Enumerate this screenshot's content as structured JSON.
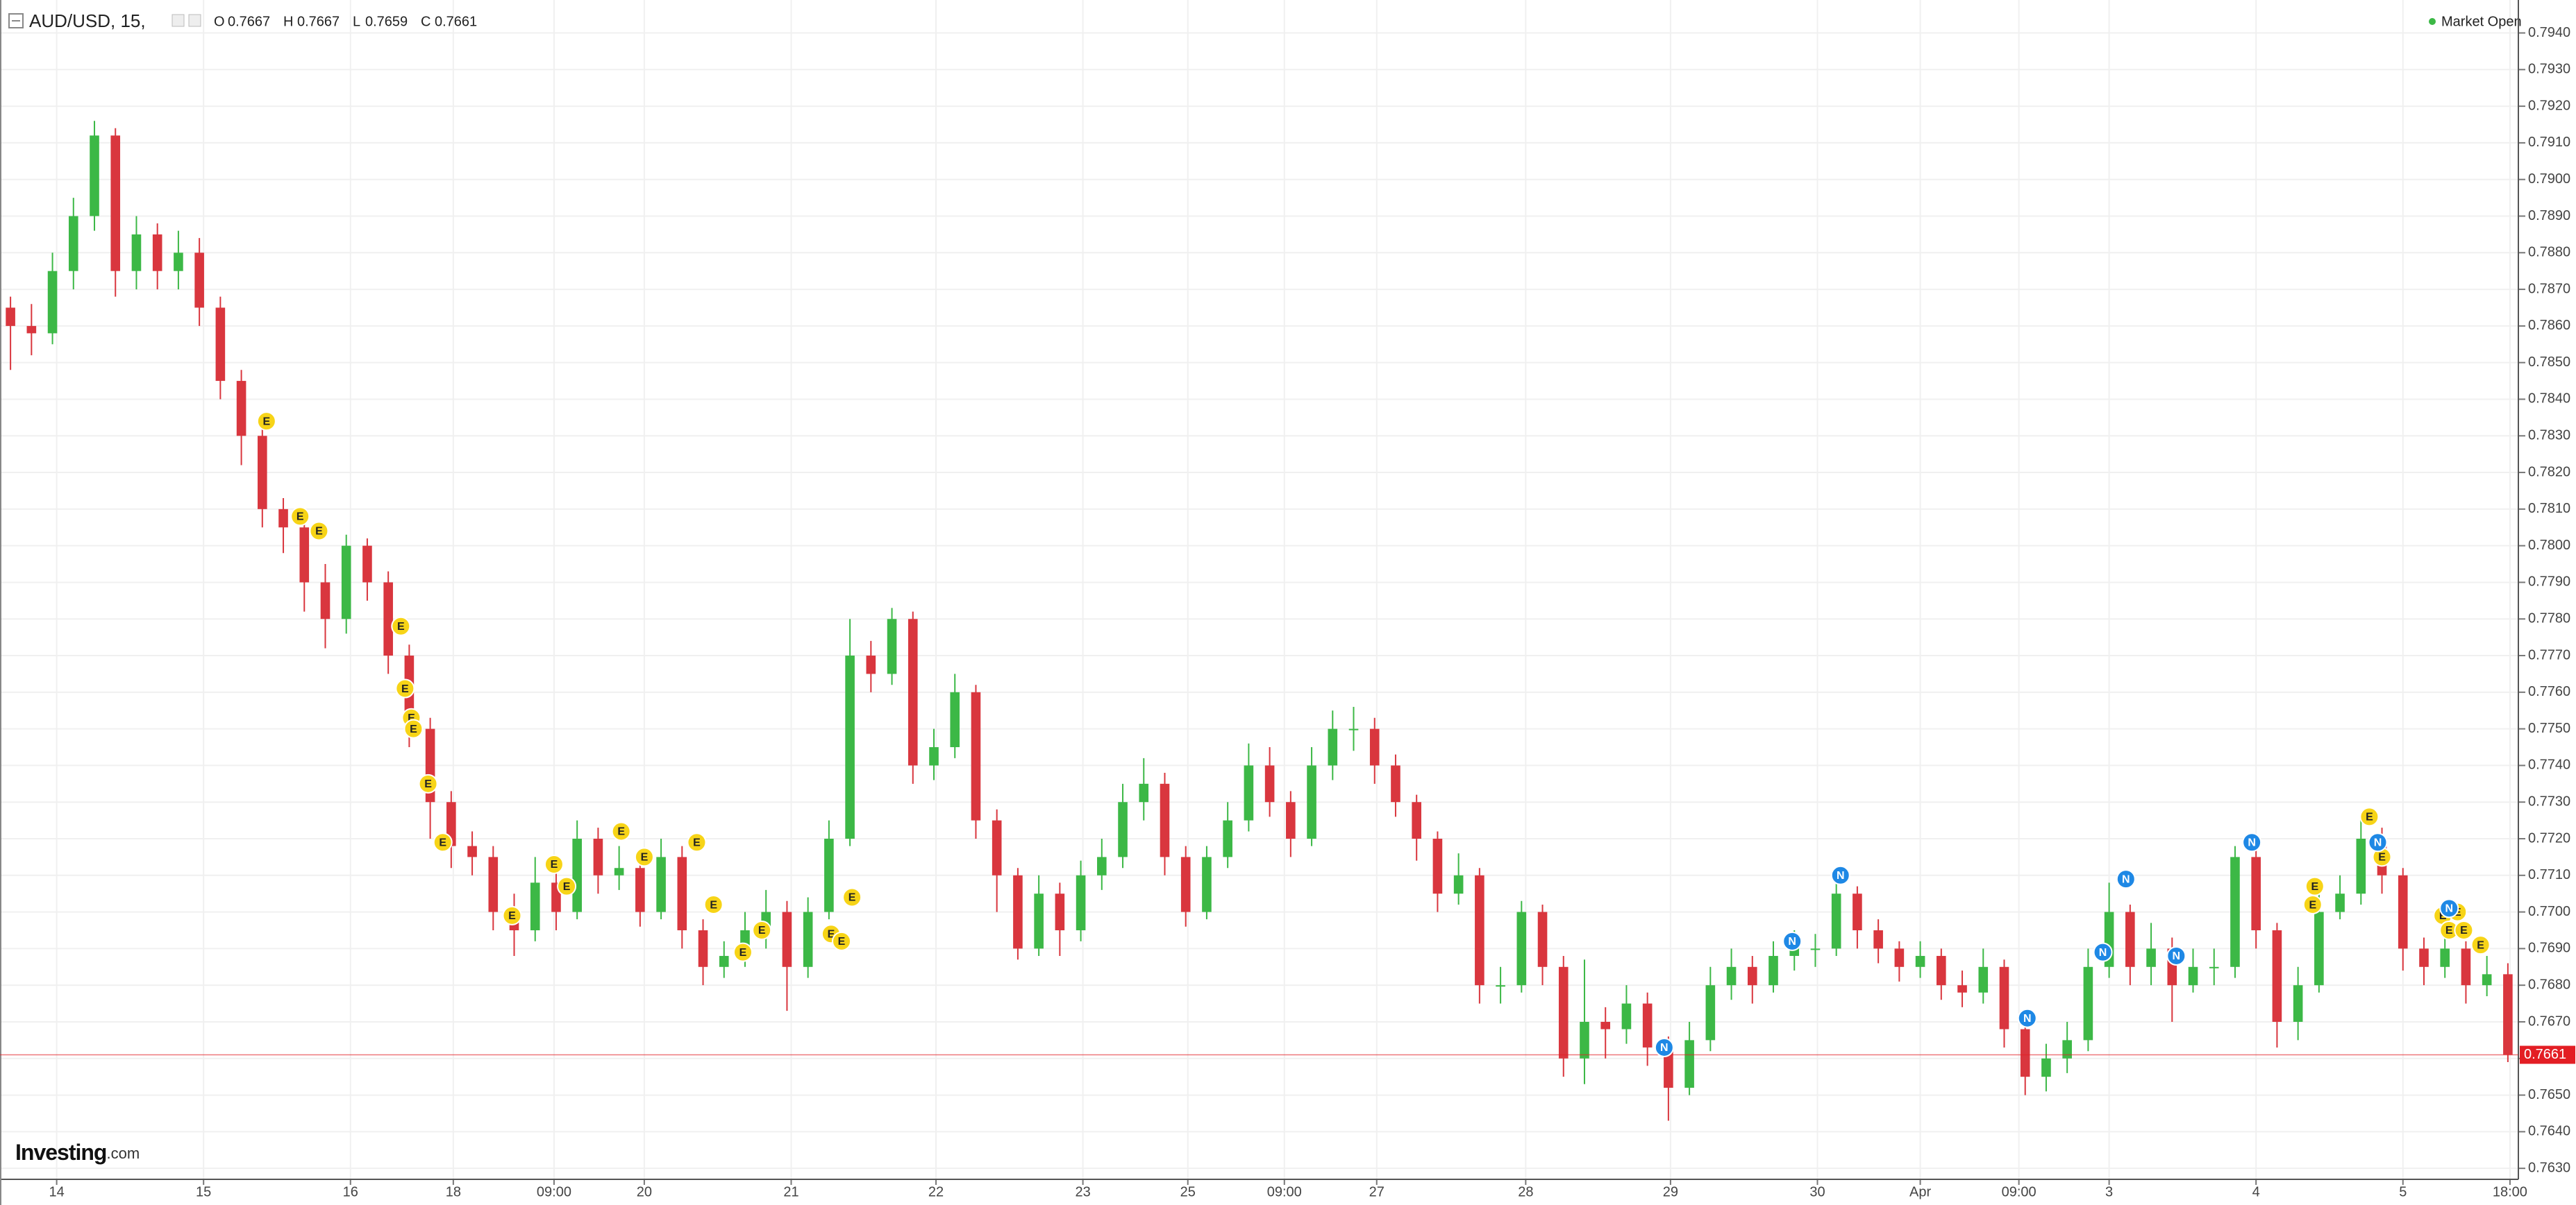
{
  "chart_data": {
    "type": "candlestick",
    "title": "AUD/USD, 15,",
    "ohlc_header": {
      "open_label": "O",
      "open": 0.7667,
      "high_label": "H",
      "high": 0.7667,
      "low_label": "L",
      "low": 0.7659,
      "close_label": "C",
      "close": 0.7661
    },
    "status": "Market Open",
    "brand": {
      "name": "Investing",
      "suffix": ".com"
    },
    "up_color": "#3cb846",
    "down_color": "#d9363e",
    "last_price_color": "#e31e24",
    "grid": true,
    "open": [
      0.7865,
      0.786,
      0.7858,
      0.7875,
      0.789,
      0.7912,
      0.7875,
      0.7885,
      0.7875,
      0.788,
      0.7865,
      0.7845,
      0.783,
      0.781,
      0.7805,
      0.779,
      0.778,
      0.78,
      0.779,
      0.777,
      0.775,
      0.773,
      0.7718,
      0.7715,
      0.77,
      0.7695,
      0.7708,
      0.77,
      0.772,
      0.771,
      0.7712,
      0.77,
      0.7715,
      0.7695,
      0.7685,
      0.7688,
      0.7695,
      0.77,
      0.7685,
      0.77,
      0.772,
      0.777,
      0.7765,
      0.778,
      0.774,
      0.7745,
      0.776,
      0.7725,
      0.771,
      0.769,
      0.7705,
      0.7695,
      0.771,
      0.7715,
      0.773,
      0.7735,
      0.7715,
      0.77,
      0.7715,
      0.7725,
      0.774,
      0.773,
      0.772,
      0.774,
      0.775,
      0.775,
      0.774,
      0.773,
      0.772,
      0.7705,
      0.771,
      0.768,
      0.768,
      0.77,
      0.7685,
      0.766,
      0.767,
      0.7668,
      0.7675,
      0.7663,
      0.7652,
      0.7665,
      0.768,
      0.7685,
      0.768,
      0.7688,
      0.769,
      0.769,
      0.7705,
      0.7695,
      0.769,
      0.7685,
      0.7688,
      0.768,
      0.7678,
      0.7685,
      0.7668,
      0.7655,
      0.766,
      0.7665,
      0.7685,
      0.77,
      0.7685,
      0.769,
      0.768,
      0.7685,
      0.7685,
      0.7715,
      0.7695,
      0.767,
      0.768,
      0.77,
      0.7705,
      0.772,
      0.771,
      0.769,
      0.7685,
      0.769,
      0.768,
      0.7683
    ],
    "high": [
      0.7868,
      0.7866,
      0.788,
      0.7895,
      0.7916,
      0.7914,
      0.789,
      0.7888,
      0.7886,
      0.7884,
      0.7868,
      0.7848,
      0.7833,
      0.7813,
      0.7808,
      0.7795,
      0.7803,
      0.7802,
      0.7793,
      0.7773,
      0.7753,
      0.7733,
      0.7722,
      0.7718,
      0.7705,
      0.7715,
      0.7712,
      0.7725,
      0.7723,
      0.7718,
      0.7715,
      0.772,
      0.7718,
      0.7698,
      0.7692,
      0.77,
      0.7706,
      0.7703,
      0.7704,
      0.7725,
      0.778,
      0.7774,
      0.7783,
      0.7782,
      0.775,
      0.7765,
      0.7762,
      0.7728,
      0.7712,
      0.771,
      0.7708,
      0.7714,
      0.772,
      0.7735,
      0.7742,
      0.7738,
      0.7718,
      0.7718,
      0.773,
      0.7746,
      0.7745,
      0.7733,
      0.7745,
      0.7755,
      0.7756,
      0.7753,
      0.7743,
      0.7732,
      0.7722,
      0.7716,
      0.7712,
      0.7685,
      0.7703,
      0.7702,
      0.7688,
      0.7687,
      0.7674,
      0.768,
      0.7678,
      0.7666,
      0.767,
      0.7685,
      0.769,
      0.7688,
      0.7692,
      0.7695,
      0.7694,
      0.771,
      0.7707,
      0.7698,
      0.7692,
      0.7692,
      0.769,
      0.7684,
      0.769,
      0.7687,
      0.767,
      0.7664,
      0.767,
      0.769,
      0.7708,
      0.7702,
      0.7697,
      0.7693,
      0.769,
      0.769,
      0.7718,
      0.7717,
      0.7697,
      0.7685,
      0.7705,
      0.771,
      0.7726,
      0.7723,
      0.7712,
      0.7693,
      0.7695,
      0.7692,
      0.7688,
      0.7686
    ],
    "low": [
      0.7848,
      0.7852,
      0.7855,
      0.787,
      0.7886,
      0.7868,
      0.787,
      0.787,
      0.787,
      0.786,
      0.784,
      0.7822,
      0.7805,
      0.7798,
      0.7782,
      0.7772,
      0.7776,
      0.7785,
      0.7765,
      0.7745,
      0.772,
      0.7712,
      0.771,
      0.7695,
      0.7688,
      0.7692,
      0.7695,
      0.7698,
      0.7705,
      0.7706,
      0.7696,
      0.7698,
      0.769,
      0.768,
      0.7682,
      0.7685,
      0.769,
      0.7673,
      0.7682,
      0.7698,
      0.7718,
      0.776,
      0.7762,
      0.7735,
      0.7736,
      0.7742,
      0.772,
      0.77,
      0.7687,
      0.7688,
      0.7688,
      0.7692,
      0.7706,
      0.7712,
      0.7725,
      0.771,
      0.7696,
      0.7698,
      0.7712,
      0.7722,
      0.7726,
      0.7715,
      0.7718,
      0.7736,
      0.7744,
      0.7735,
      0.7726,
      0.7714,
      0.77,
      0.7702,
      0.7675,
      0.7675,
      0.7678,
      0.768,
      0.7655,
      0.7653,
      0.766,
      0.7664,
      0.7658,
      0.7643,
      0.765,
      0.7662,
      0.7676,
      0.7675,
      0.7678,
      0.7684,
      0.7685,
      0.7688,
      0.769,
      0.7686,
      0.7681,
      0.7682,
      0.7676,
      0.7674,
      0.7675,
      0.7663,
      0.765,
      0.7651,
      0.7656,
      0.7662,
      0.7682,
      0.768,
      0.768,
      0.767,
      0.7678,
      0.768,
      0.7682,
      0.769,
      0.7663,
      0.7665,
      0.7678,
      0.7698,
      0.7702,
      0.7705,
      0.7684,
      0.768,
      0.7682,
      0.7675,
      0.7677,
      0.7659
    ],
    "close": [
      0.786,
      0.7858,
      0.7875,
      0.789,
      0.7912,
      0.7875,
      0.7885,
      0.7875,
      0.788,
      0.7865,
      0.7845,
      0.783,
      0.781,
      0.7805,
      0.779,
      0.778,
      0.78,
      0.779,
      0.777,
      0.775,
      0.773,
      0.7718,
      0.7715,
      0.77,
      0.7695,
      0.7708,
      0.77,
      0.772,
      0.771,
      0.7712,
      0.77,
      0.7715,
      0.7695,
      0.7685,
      0.7688,
      0.7695,
      0.77,
      0.7685,
      0.77,
      0.772,
      0.777,
      0.7765,
      0.778,
      0.774,
      0.7745,
      0.776,
      0.7725,
      0.771,
      0.769,
      0.7705,
      0.7695,
      0.771,
      0.7715,
      0.773,
      0.7735,
      0.7715,
      0.77,
      0.7715,
      0.7725,
      0.774,
      0.773,
      0.772,
      0.774,
      0.775,
      0.775,
      0.774,
      0.773,
      0.772,
      0.7705,
      0.771,
      0.768,
      0.768,
      0.77,
      0.7685,
      0.766,
      0.767,
      0.7668,
      0.7675,
      0.7663,
      0.7652,
      0.7665,
      0.768,
      0.7685,
      0.768,
      0.7688,
      0.769,
      0.769,
      0.7705,
      0.7695,
      0.769,
      0.7685,
      0.7688,
      0.768,
      0.7678,
      0.7685,
      0.7668,
      0.7655,
      0.766,
      0.7665,
      0.7685,
      0.77,
      0.7685,
      0.769,
      0.768,
      0.7685,
      0.7685,
      0.7715,
      0.7695,
      0.767,
      0.768,
      0.77,
      0.7705,
      0.772,
      0.771,
      0.769,
      0.7685,
      0.769,
      0.768,
      0.7683,
      0.7661
    ],
    "xlim": [
      0,
      120
    ],
    "xticks": [
      {
        "value": 2.7,
        "label": "14"
      },
      {
        "value": 9.7,
        "label": "15"
      },
      {
        "value": 16.7,
        "label": "16"
      },
      {
        "value": 21.6,
        "label": "18"
      },
      {
        "value": 26.4,
        "label": "09:00"
      },
      {
        "value": 30.7,
        "label": "20"
      },
      {
        "value": 37.7,
        "label": "21"
      },
      {
        "value": 44.6,
        "label": "22"
      },
      {
        "value": 51.6,
        "label": "23"
      },
      {
        "value": 56.6,
        "label": "25"
      },
      {
        "value": 61.2,
        "label": "09:00"
      },
      {
        "value": 65.6,
        "label": "27"
      },
      {
        "value": 72.7,
        "label": "28"
      },
      {
        "value": 79.6,
        "label": "29"
      },
      {
        "value": 86.6,
        "label": "30"
      },
      {
        "value": 91.5,
        "label": "Apr"
      },
      {
        "value": 96.2,
        "label": "09:00"
      },
      {
        "value": 100.5,
        "label": "3"
      },
      {
        "value": 107.5,
        "label": "4"
      },
      {
        "value": 114.5,
        "label": "5"
      },
      {
        "value": 119.6,
        "label": "18:00"
      }
    ],
    "ylim": [
      0.7627,
      0.7949
    ],
    "yticks": [
      {
        "value": 0.763,
        "label": "0.7630"
      },
      {
        "value": 0.764,
        "label": "0.7640"
      },
      {
        "value": 0.765,
        "label": "0.7650"
      },
      {
        "value": 0.766,
        "label": "0.7660"
      },
      {
        "value": 0.767,
        "label": "0.7670"
      },
      {
        "value": 0.768,
        "label": "0.7680"
      },
      {
        "value": 0.769,
        "label": "0.7690"
      },
      {
        "value": 0.77,
        "label": "0.7700"
      },
      {
        "value": 0.771,
        "label": "0.7710"
      },
      {
        "value": 0.772,
        "label": "0.7720"
      },
      {
        "value": 0.773,
        "label": "0.7730"
      },
      {
        "value": 0.774,
        "label": "0.7740"
      },
      {
        "value": 0.775,
        "label": "0.7750"
      },
      {
        "value": 0.776,
        "label": "0.7760"
      },
      {
        "value": 0.777,
        "label": "0.7770"
      },
      {
        "value": 0.778,
        "label": "0.7780"
      },
      {
        "value": 0.779,
        "label": "0.7790"
      },
      {
        "value": 0.78,
        "label": "0.7800"
      },
      {
        "value": 0.781,
        "label": "0.7810"
      },
      {
        "value": 0.782,
        "label": "0.7820"
      },
      {
        "value": 0.783,
        "label": "0.7830"
      },
      {
        "value": 0.784,
        "label": "0.7840"
      },
      {
        "value": 0.785,
        "label": "0.7850"
      },
      {
        "value": 0.786,
        "label": "0.7860"
      },
      {
        "value": 0.787,
        "label": "0.7870"
      },
      {
        "value": 0.788,
        "label": "0.7880"
      },
      {
        "value": 0.789,
        "label": "0.7890"
      },
      {
        "value": 0.79,
        "label": "0.7900"
      },
      {
        "value": 0.791,
        "label": "0.7910"
      },
      {
        "value": 0.792,
        "label": "0.7920"
      },
      {
        "value": 0.793,
        "label": "0.7930"
      },
      {
        "value": 0.794,
        "label": "0.7940"
      }
    ],
    "events": [
      {
        "label": "E",
        "x": 12.7,
        "y": 0.7834
      },
      {
        "label": "E",
        "x": 14.3,
        "y": 0.7808
      },
      {
        "label": "E",
        "x": 15.2,
        "y": 0.7804
      },
      {
        "label": "E",
        "x": 19.1,
        "y": 0.7778
      },
      {
        "label": "E",
        "x": 19.3,
        "y": 0.7761
      },
      {
        "label": "E",
        "x": 19.6,
        "y": 0.7753
      },
      {
        "label": "E",
        "x": 19.7,
        "y": 0.775
      },
      {
        "label": "E",
        "x": 20.4,
        "y": 0.7735
      },
      {
        "label": "E",
        "x": 21.1,
        "y": 0.7719
      },
      {
        "label": "E",
        "x": 24.4,
        "y": 0.7699
      },
      {
        "label": "E",
        "x": 26.4,
        "y": 0.7713
      },
      {
        "label": "E",
        "x": 27.0,
        "y": 0.7707
      },
      {
        "label": "E",
        "x": 29.6,
        "y": 0.7722
      },
      {
        "label": "E",
        "x": 30.7,
        "y": 0.7715
      },
      {
        "label": "E",
        "x": 33.2,
        "y": 0.7719
      },
      {
        "label": "E",
        "x": 34.0,
        "y": 0.7702
      },
      {
        "label": "E",
        "x": 35.4,
        "y": 0.7689
      },
      {
        "label": "E",
        "x": 36.3,
        "y": 0.7695
      },
      {
        "label": "E",
        "x": 39.6,
        "y": 0.7694
      },
      {
        "label": "E",
        "x": 40.1,
        "y": 0.7692
      },
      {
        "label": "E",
        "x": 40.6,
        "y": 0.7704
      },
      {
        "label": "E",
        "x": 110.3,
        "y": 0.7707
      },
      {
        "label": "E",
        "x": 110.2,
        "y": 0.7702
      },
      {
        "label": "E",
        "x": 112.9,
        "y": 0.7726
      },
      {
        "label": "E",
        "x": 113.5,
        "y": 0.7715
      },
      {
        "label": "E",
        "x": 116.4,
        "y": 0.7699
      },
      {
        "label": "E",
        "x": 117.1,
        "y": 0.77
      },
      {
        "label": "E",
        "x": 116.7,
        "y": 0.7695
      },
      {
        "label": "E",
        "x": 117.4,
        "y": 0.7695
      },
      {
        "label": "E",
        "x": 118.2,
        "y": 0.7691
      },
      {
        "label": "N",
        "x": 79.3,
        "y": 0.7663
      },
      {
        "label": "N",
        "x": 85.4,
        "y": 0.7692
      },
      {
        "label": "N",
        "x": 87.7,
        "y": 0.771
      },
      {
        "label": "N",
        "x": 96.6,
        "y": 0.7671
      },
      {
        "label": "N",
        "x": 100.2,
        "y": 0.7689
      },
      {
        "label": "N",
        "x": 101.3,
        "y": 0.7709
      },
      {
        "label": "N",
        "x": 103.7,
        "y": 0.7688
      },
      {
        "label": "N",
        "x": 107.3,
        "y": 0.7719
      },
      {
        "label": "N",
        "x": 113.3,
        "y": 0.7719
      },
      {
        "label": "N",
        "x": 116.7,
        "y": 0.7701
      }
    ]
  }
}
